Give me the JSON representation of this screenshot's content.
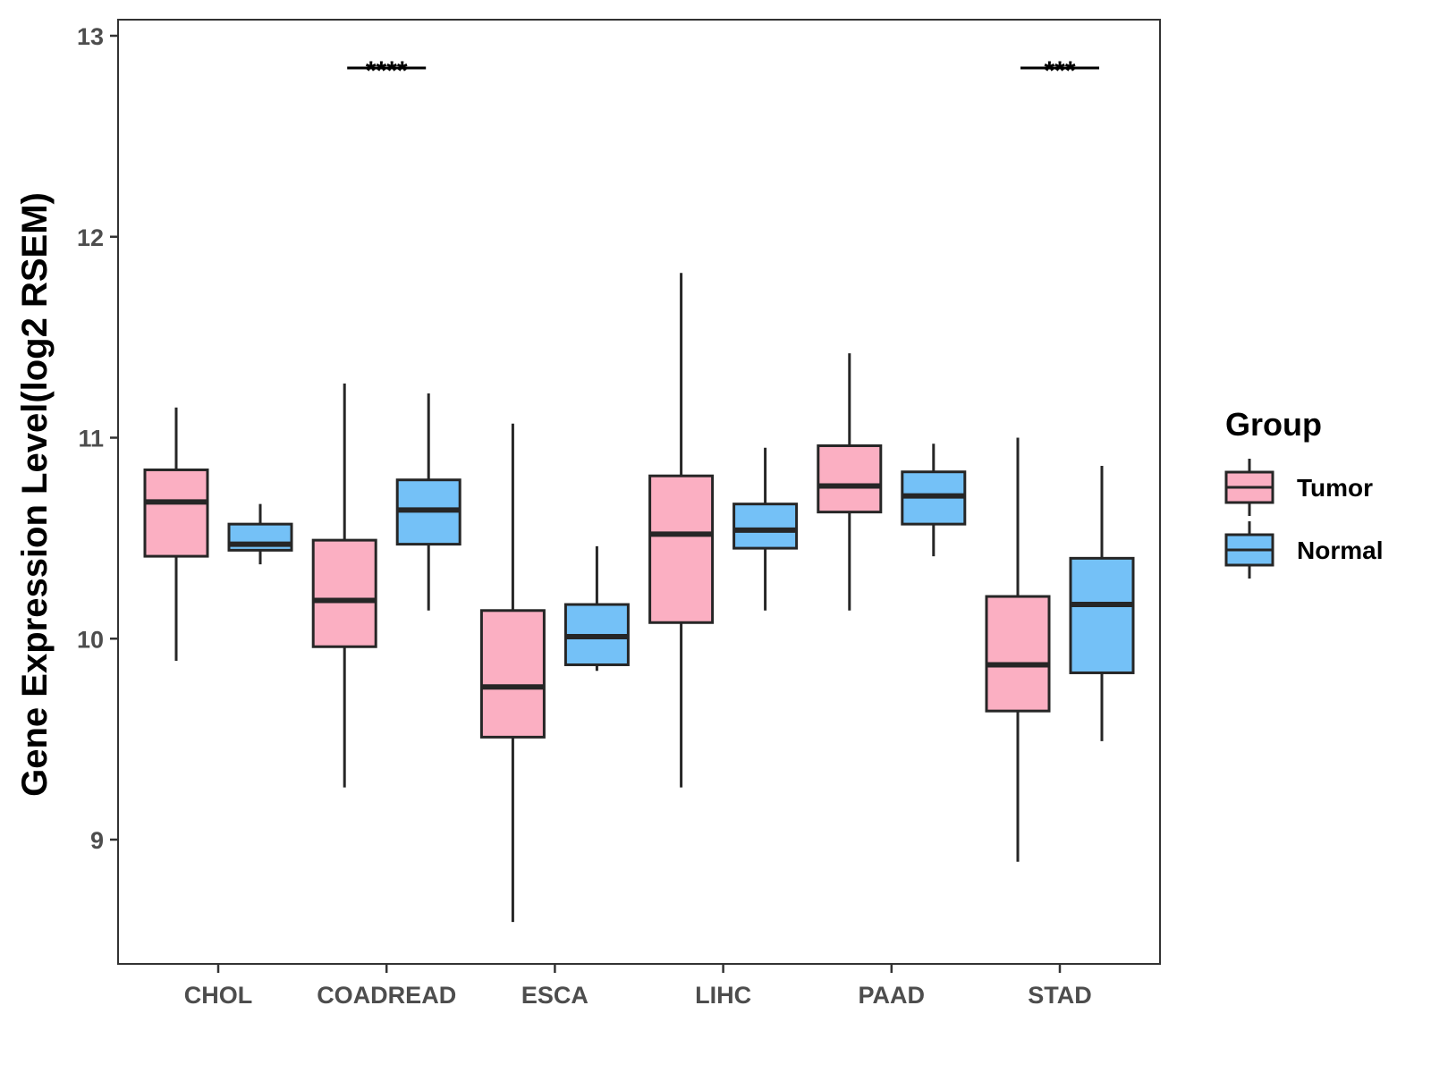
{
  "chart_data": {
    "type": "boxplot",
    "title": "",
    "xlabel": "",
    "ylabel": "Gene Expression Level(log2 RSEM)",
    "ylim": [
      8.45,
      13.08
    ],
    "yticks": [
      9,
      10,
      11,
      12,
      13
    ],
    "grid": false,
    "legend_position": "right",
    "legend": {
      "title": "Group",
      "entries": [
        {
          "name": "Tumor",
          "color": "#FBAFC2"
        },
        {
          "name": "Normal",
          "color": "#74C1F7"
        }
      ]
    },
    "categories": [
      "CHOL",
      "COADREAD",
      "ESCA",
      "LIHC",
      "PAAD",
      "STAD"
    ],
    "series": [
      {
        "name": "Tumor",
        "color": "#FBAFC2",
        "boxes": [
          {
            "min": 9.89,
            "q1": 10.41,
            "median": 10.68,
            "q3": 10.84,
            "max": 11.15
          },
          {
            "min": 9.26,
            "q1": 9.96,
            "median": 10.19,
            "q3": 10.49,
            "max": 11.27
          },
          {
            "min": 8.59,
            "q1": 9.51,
            "median": 9.76,
            "q3": 10.14,
            "max": 11.07
          },
          {
            "min": 9.26,
            "q1": 10.08,
            "median": 10.52,
            "q3": 10.81,
            "max": 11.82
          },
          {
            "min": 10.14,
            "q1": 10.63,
            "median": 10.76,
            "q3": 10.96,
            "max": 11.42
          },
          {
            "min": 8.89,
            "q1": 9.64,
            "median": 9.87,
            "q3": 10.21,
            "max": 11.0
          }
        ]
      },
      {
        "name": "Normal",
        "color": "#74C1F7",
        "boxes": [
          {
            "min": 10.37,
            "q1": 10.44,
            "median": 10.47,
            "q3": 10.57,
            "max": 10.67
          },
          {
            "min": 10.14,
            "q1": 10.47,
            "median": 10.64,
            "q3": 10.79,
            "max": 11.22
          },
          {
            "min": 9.84,
            "q1": 9.87,
            "median": 10.01,
            "q3": 10.17,
            "max": 10.46
          },
          {
            "min": 10.14,
            "q1": 10.45,
            "median": 10.54,
            "q3": 10.67,
            "max": 10.95
          },
          {
            "min": 10.41,
            "q1": 10.57,
            "median": 10.71,
            "q3": 10.83,
            "max": 10.97
          },
          {
            "min": 9.49,
            "q1": 9.83,
            "median": 10.17,
            "q3": 10.4,
            "max": 10.86
          }
        ]
      }
    ],
    "significance": [
      {
        "category": "COADREAD",
        "label": "****",
        "y": 12.84
      },
      {
        "category": "STAD",
        "label": "***",
        "y": 12.84
      }
    ]
  }
}
